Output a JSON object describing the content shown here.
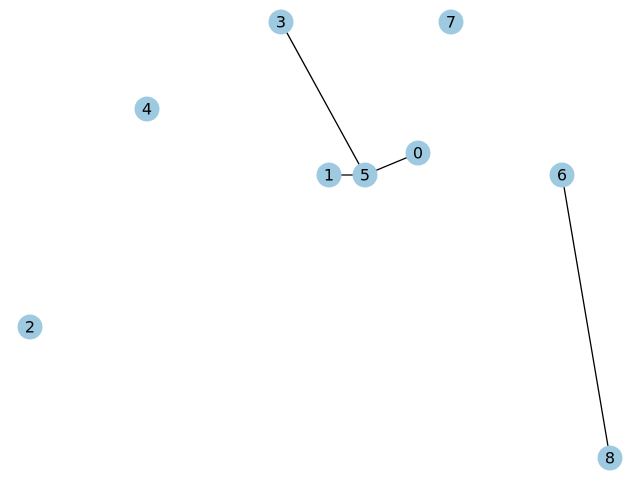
{
  "graph": {
    "node_color": "#9ecae1",
    "edge_color": "#000000",
    "nodes": [
      {
        "id": "0",
        "label": "0"
      },
      {
        "id": "1",
        "label": "1"
      },
      {
        "id": "2",
        "label": "2"
      },
      {
        "id": "3",
        "label": "3"
      },
      {
        "id": "4",
        "label": "4"
      },
      {
        "id": "5",
        "label": "5"
      },
      {
        "id": "6",
        "label": "6"
      },
      {
        "id": "7",
        "label": "7"
      },
      {
        "id": "8",
        "label": "8"
      }
    ],
    "edges": [
      {
        "source": "3",
        "target": "5"
      },
      {
        "source": "1",
        "target": "5"
      },
      {
        "source": "5",
        "target": "0"
      },
      {
        "source": "6",
        "target": "8"
      }
    ]
  }
}
